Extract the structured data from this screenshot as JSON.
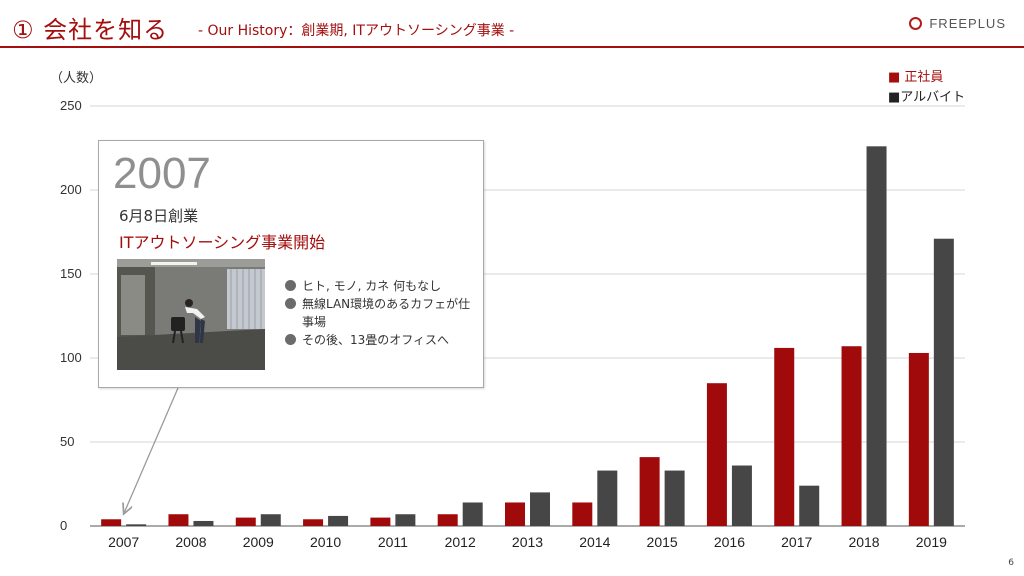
{
  "header": {
    "title": "① 会社を知る",
    "subtitle": "- Our History：創業期, ITアウトソーシング事業 -",
    "brand": "FREEPLUS"
  },
  "callout": {
    "year": "2007",
    "date": "6月8日創業",
    "event": "ITアウトソーシング事業開始",
    "bullets": [
      "ヒト, モノ, カネ 何もなし",
      "無線LAN環境のあるカフェが仕事場",
      "その後、13畳のオフィスへ"
    ],
    "photo": "office-photo"
  },
  "page_number": "6",
  "colors": {
    "accent": "#a40e0e",
    "series_0": "#a00a0a",
    "series_1": "#464646",
    "grid": "#d6d6d6"
  },
  "chart_data": {
    "type": "bar",
    "title": "",
    "ylabel": "（人数）",
    "xlabel": "",
    "categories": [
      "2007",
      "2008",
      "2009",
      "2010",
      "2011",
      "2012",
      "2013",
      "2014",
      "2015",
      "2016",
      "2017",
      "2018",
      "2019"
    ],
    "series": [
      {
        "name": "正社員",
        "values": [
          4,
          7,
          5,
          4,
          5,
          7,
          14,
          14,
          41,
          85,
          106,
          107,
          103
        ]
      },
      {
        "name": "アルバイト",
        "values": [
          1,
          3,
          7,
          6,
          7,
          14,
          20,
          33,
          33,
          36,
          24,
          226,
          171
        ]
      }
    ],
    "legend_labels": [
      "■ 正社員",
      "■アルバイト"
    ],
    "yticks": [
      0,
      50,
      100,
      150,
      200,
      250
    ],
    "ylim": [
      0,
      250
    ],
    "grid": true,
    "legend_position": "top-right"
  }
}
